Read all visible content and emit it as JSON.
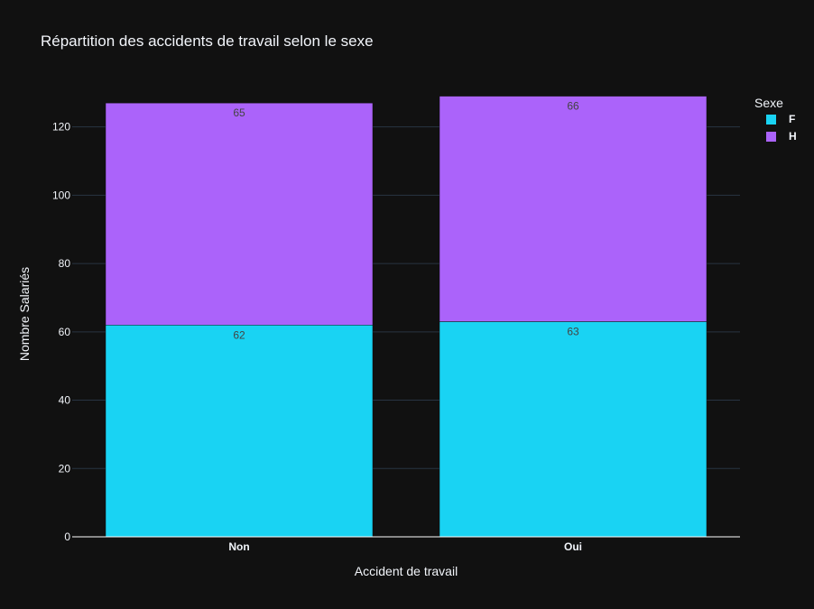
{
  "chart_data": {
    "type": "bar",
    "barmode": "stack",
    "title": "Répartition des accidents de travail selon le sexe",
    "xlabel": "Accident de travail",
    "ylabel": "Nombre Salariés",
    "categories": [
      "Non",
      "Oui"
    ],
    "series": [
      {
        "name": "F",
        "values": [
          62,
          63
        ],
        "color": "#19d3f3"
      },
      {
        "name": "H",
        "values": [
          65,
          66
        ],
        "color": "#ab63fa"
      }
    ],
    "ylim": [
      0,
      134.7
    ],
    "yticks": [
      0,
      20,
      40,
      60,
      80,
      100,
      120
    ],
    "grid": true,
    "legend": {
      "title": "Sexe",
      "placement": "top-right"
    },
    "background": "#111111",
    "grid_color": "#283442"
  }
}
